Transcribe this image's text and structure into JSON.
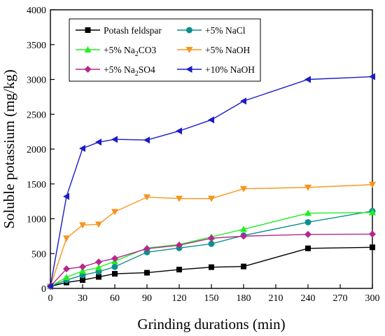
{
  "chart_data": {
    "type": "line",
    "title": "",
    "xlabel": "Grinding durations (min)",
    "ylabel": "Soluble potassium (mg/kg)",
    "xlim": [
      0,
      300
    ],
    "ylim": [
      0,
      4000
    ],
    "xticks": [
      0,
      30,
      60,
      90,
      120,
      150,
      180,
      210,
      240,
      270,
      300
    ],
    "yticks": [
      0,
      500,
      1000,
      1500,
      2000,
      2500,
      3000,
      3500,
      4000
    ],
    "grid": false,
    "legend_position": "top-left",
    "x": [
      0,
      15,
      30,
      45,
      60,
      90,
      120,
      150,
      180,
      240,
      300
    ],
    "series": [
      {
        "name": "Potash feldspar",
        "name_main": "Potash feldspar",
        "name_sub": "",
        "name_tail": "",
        "color": "#000000",
        "marker": "square",
        "values": [
          30,
          85,
          120,
          165,
          210,
          225,
          270,
          305,
          315,
          575,
          590
        ]
      },
      {
        "name": "+5% NaCl",
        "name_main": "+5% NaCl",
        "name_sub": "",
        "name_tail": "",
        "color": "#0e8f8f",
        "marker": "circle",
        "values": [
          30,
          120,
          190,
          240,
          310,
          520,
          580,
          640,
          760,
          950,
          1110
        ]
      },
      {
        "name": "+5% Na2CO3",
        "name_main": "+5% Na",
        "name_sub": "2",
        "name_tail": "CO3",
        "color": "#22ee22",
        "marker": "triangle-up",
        "values": [
          30,
          160,
          250,
          300,
          390,
          580,
          630,
          740,
          850,
          1080,
          1090
        ]
      },
      {
        "name": "+5% NaOH",
        "name_main": "+5% NaOH",
        "name_sub": "",
        "name_tail": "",
        "color": "#f7941d",
        "marker": "triangle-down",
        "values": [
          30,
          720,
          910,
          920,
          1100,
          1310,
          1290,
          1290,
          1430,
          1450,
          1490
        ]
      },
      {
        "name": "+5% Na2SO4",
        "name_main": "+5% Na",
        "name_sub": "2",
        "name_tail": "SO4",
        "color": "#b5278e",
        "marker": "diamond",
        "values": [
          30,
          280,
          310,
          380,
          430,
          570,
          620,
          720,
          750,
          775,
          780
        ]
      },
      {
        "name": "+10% NaOH",
        "name_main": "+10% NaOH",
        "name_sub": "",
        "name_tail": "",
        "color": "#1b1bc8",
        "marker": "triangle-left",
        "values": [
          30,
          1320,
          2010,
          2100,
          2140,
          2130,
          2260,
          2420,
          2690,
          3000,
          3040
        ]
      }
    ]
  }
}
